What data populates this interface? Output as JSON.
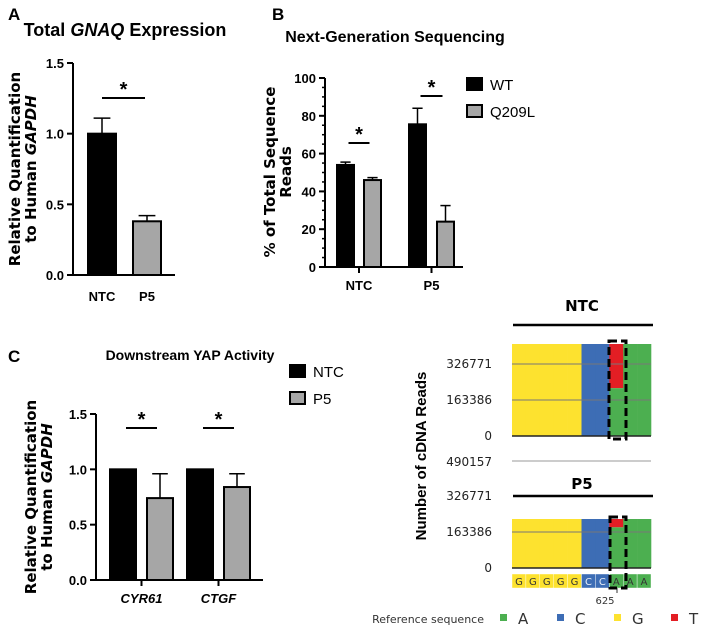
{
  "panel_labels": [
    "A",
    "B",
    "C"
  ],
  "chart_data": [
    {
      "id": "A",
      "type": "bar",
      "title_parts": [
        "Total ",
        "GNAQ",
        " Expression"
      ],
      "ylabel_lines": [
        [
          "Relative Quantification"
        ],
        [
          "to Human ",
          "GAPDH"
        ]
      ],
      "categories": [
        "NTC",
        "P5"
      ],
      "values": [
        1.0,
        0.38
      ],
      "errors": [
        0.11,
        0.04
      ],
      "colors": [
        "#000000",
        "#a6a6a6"
      ],
      "ylim": [
        0,
        1.5
      ],
      "yticks": [
        "0.0",
        "0.5",
        "1.0",
        "1.5"
      ],
      "significance": [
        {
          "between": [
            "NTC",
            "P5"
          ],
          "label": "*"
        }
      ]
    },
    {
      "id": "B",
      "type": "bar",
      "title": "Next-Generation Sequencing",
      "ylabel_lines": [
        "% of Total Sequence",
        "Reads"
      ],
      "categories": [
        "NTC",
        "P5"
      ],
      "series": [
        {
          "name": "WT",
          "values": [
            54,
            75.5
          ],
          "errors": [
            1.5,
            8.5
          ],
          "color": "#000000"
        },
        {
          "name": "Q209L",
          "values": [
            46,
            24
          ],
          "errors": [
            1.3,
            8.5
          ],
          "color": "#a6a6a6"
        }
      ],
      "ylim": [
        0,
        100
      ],
      "yticks": [
        "0",
        "20",
        "40",
        "60",
        "80",
        "100"
      ],
      "legend": "top-right",
      "significance": [
        {
          "group": "NTC",
          "label": "*"
        },
        {
          "group": "P5",
          "label": "*"
        }
      ]
    },
    {
      "id": "C",
      "type": "bar",
      "title": "Downstream YAP Activity",
      "ylabel_lines": [
        [
          "Relative Quantification"
        ],
        [
          "to Human ",
          "GAPDH"
        ]
      ],
      "categories": [
        "CYR61",
        "CTGF"
      ],
      "series": [
        {
          "name": "NTC",
          "values": [
            1.0,
            1.0
          ],
          "errors": [
            0.0,
            0.0
          ],
          "color": "#000000"
        },
        {
          "name": "P5",
          "values": [
            0.74,
            0.84
          ],
          "errors": [
            0.22,
            0.12
          ],
          "color": "#a6a6a6"
        }
      ],
      "ylim": [
        0,
        1.5
      ],
      "yticks": [
        "0.0",
        "0.5",
        "1.0",
        "1.5"
      ],
      "legend": "top-right",
      "significance": [
        {
          "group": "CYR61",
          "label": "*"
        },
        {
          "group": "CTGF",
          "label": "*"
        }
      ]
    },
    {
      "id": "D",
      "type": "area",
      "ylabel": "Number of cDNA  Reads",
      "panels": [
        {
          "title": "NTC",
          "yticks": [
            "0",
            "163386",
            "326771"
          ],
          "t_fraction_at_position": 0.48
        },
        {
          "title": "P5",
          "yticks": [
            "0",
            "163386",
            "326771",
            "490157"
          ],
          "t_fraction_at_position": 0.17
        }
      ],
      "reference_sequence": [
        "G",
        "G",
        "G",
        "G",
        "G",
        "C",
        "C",
        "A",
        "A",
        "A"
      ],
      "highlight_position": "625",
      "legend_title": "Reference sequence",
      "legend": [
        {
          "base": "A",
          "color": "#4caf50"
        },
        {
          "base": "C",
          "color": "#3d6db5"
        },
        {
          "base": "G",
          "color": "#fde22f"
        },
        {
          "base": "T",
          "color": "#e31e24"
        }
      ]
    }
  ]
}
